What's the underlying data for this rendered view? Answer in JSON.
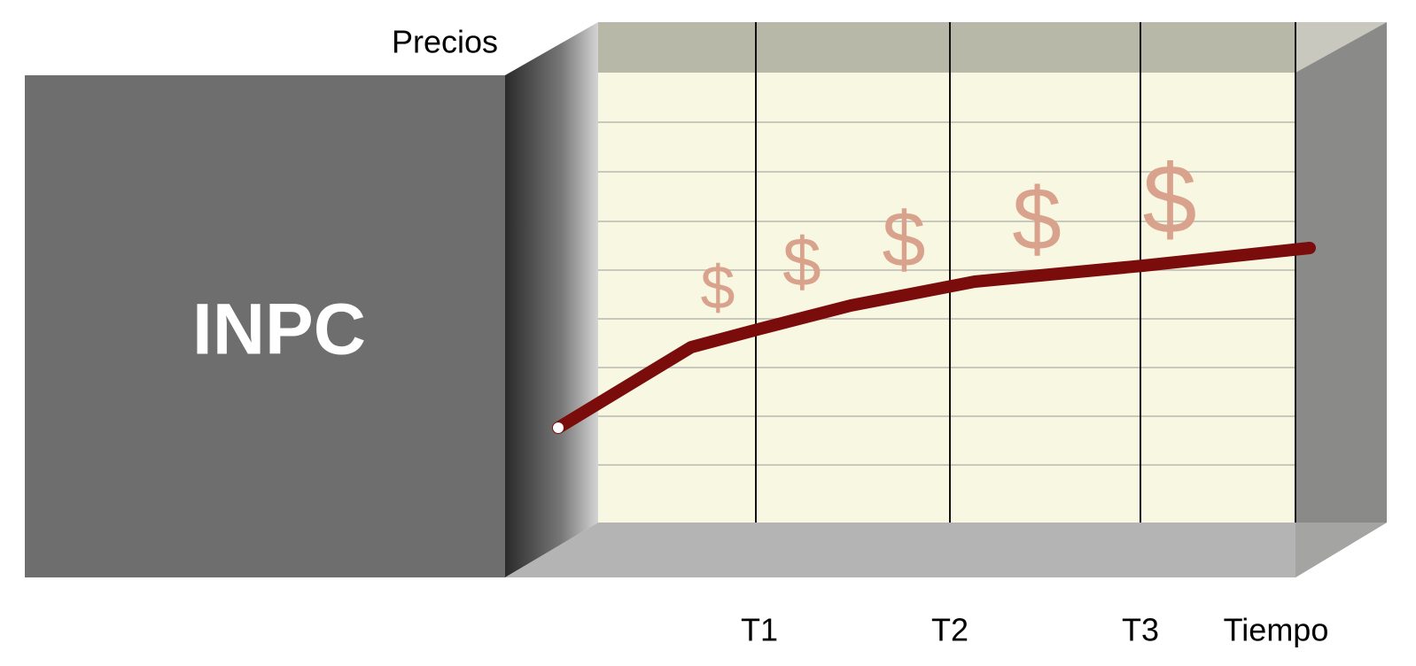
{
  "y_axis_label": "Precios",
  "box_label": "INPC",
  "time_labels": [
    "T1",
    "T2",
    "T3"
  ],
  "x_axis_label": "Tiempo",
  "price_symbols": [
    "$",
    "$",
    "$",
    "$",
    "$"
  ]
}
